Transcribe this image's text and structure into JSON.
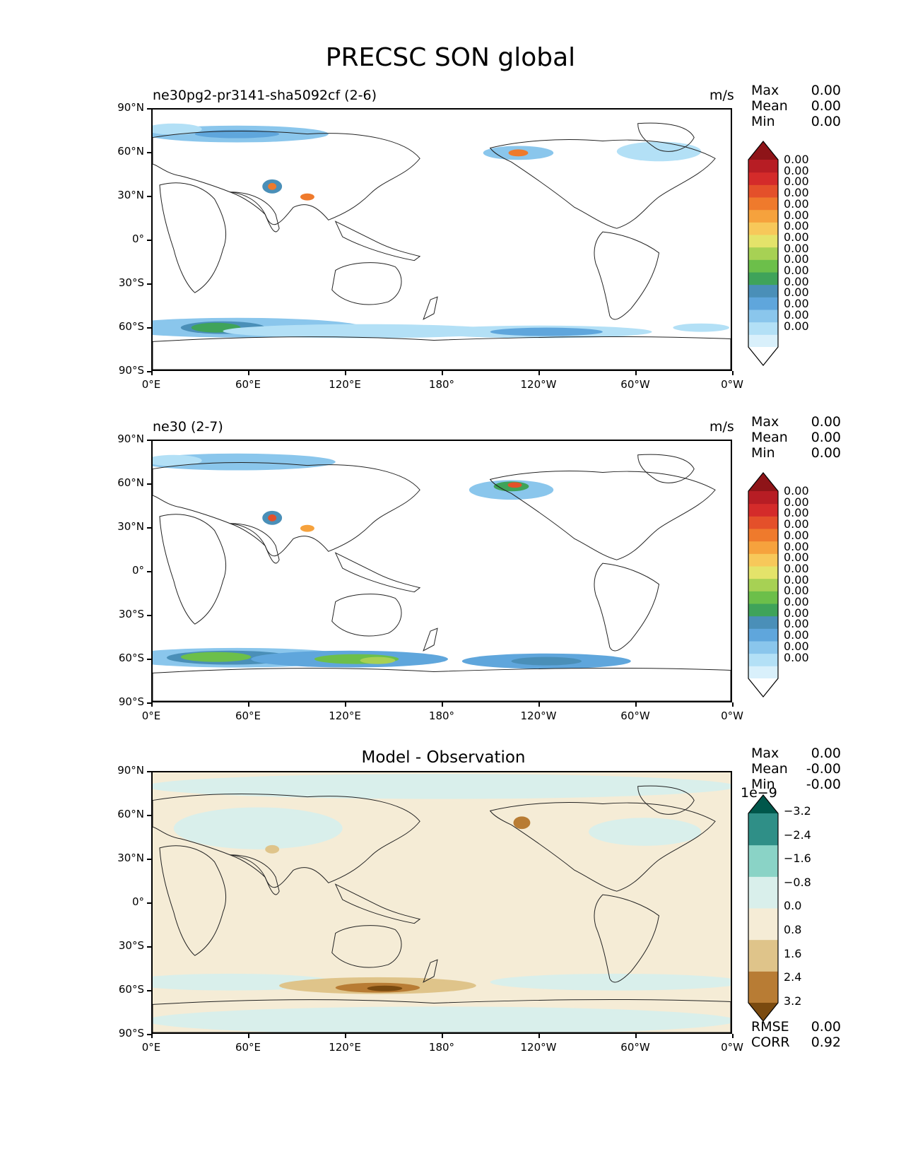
{
  "figure": {
    "title": "PRECSC SON global"
  },
  "panels": [
    {
      "id": "test",
      "title": "ne30pg2-pr3141-sha5092cf (2-6)",
      "units": "m/s",
      "stats": [
        {
          "label": "Max",
          "value": "0.00"
        },
        {
          "label": "Mean",
          "value": "0.00"
        },
        {
          "label": "Min",
          "value": "0.00"
        }
      ],
      "colorbar": {
        "colors": [
          "#ffffff",
          "#d9f0fb",
          "#b3e0f6",
          "#8ac6ec",
          "#5fa6dc",
          "#4a8fb8",
          "#3fa35a",
          "#6cbf4a",
          "#a7d154",
          "#e4e36a",
          "#f7c85a",
          "#f6a23d",
          "#ef7a2c",
          "#e4502a",
          "#d42b2a",
          "#b71d24",
          "#8e1418"
        ],
        "tick_labels": [
          "0.00",
          "0.00",
          "0.00",
          "0.00",
          "0.00",
          "0.00",
          "0.00",
          "0.00",
          "0.00",
          "0.00",
          "0.00",
          "0.00",
          "0.00",
          "0.00",
          "0.00",
          "0.00"
        ],
        "extend": "both"
      }
    },
    {
      "id": "reference",
      "title": "ne30 (2-7)",
      "units": "m/s",
      "stats": [
        {
          "label": "Max",
          "value": "0.00"
        },
        {
          "label": "Mean",
          "value": "0.00"
        },
        {
          "label": "Min",
          "value": "0.00"
        }
      ],
      "colorbar": {
        "colors": [
          "#ffffff",
          "#d9f0fb",
          "#b3e0f6",
          "#8ac6ec",
          "#5fa6dc",
          "#4a8fb8",
          "#3fa35a",
          "#6cbf4a",
          "#a7d154",
          "#e4e36a",
          "#f7c85a",
          "#f6a23d",
          "#ef7a2c",
          "#e4502a",
          "#d42b2a",
          "#b71d24",
          "#8e1418"
        ],
        "tick_labels": [
          "0.00",
          "0.00",
          "0.00",
          "0.00",
          "0.00",
          "0.00",
          "0.00",
          "0.00",
          "0.00",
          "0.00",
          "0.00",
          "0.00",
          "0.00",
          "0.00",
          "0.00",
          "0.00"
        ],
        "extend": "both"
      }
    },
    {
      "id": "difference",
      "title": "Model - Observation",
      "stats": [
        {
          "label": "Max",
          "value": "0.00"
        },
        {
          "label": "Mean",
          "value": "-0.00"
        },
        {
          "label": "Min",
          "value": "-0.00"
        }
      ],
      "colorbar": {
        "scale_label": "1e−9",
        "colors": [
          "#7a4a0f",
          "#b87c34",
          "#dfc48a",
          "#f5ecd6",
          "#d9efeb",
          "#8ad3c6",
          "#2f8f87",
          "#00574b"
        ],
        "tick_labels": [
          "−3.2",
          "−2.4",
          "−1.6",
          "−0.8",
          "0.0",
          "0.8",
          "1.6",
          "2.4",
          "3.2"
        ],
        "extend": "both"
      },
      "metrics": [
        {
          "label": "RMSE",
          "value": "0.00"
        },
        {
          "label": "CORR",
          "value": "0.92"
        }
      ]
    }
  ],
  "axes": {
    "lat_ticks": [
      "90°N",
      "60°N",
      "30°N",
      "0°",
      "30°S",
      "60°S",
      "90°S"
    ],
    "lon_ticks": [
      "0°E",
      "60°E",
      "120°E",
      "180°",
      "120°W",
      "60°W",
      "0°W"
    ]
  },
  "map_colors": {
    "land_outline": "#222222",
    "ocean": "#ffffff"
  }
}
